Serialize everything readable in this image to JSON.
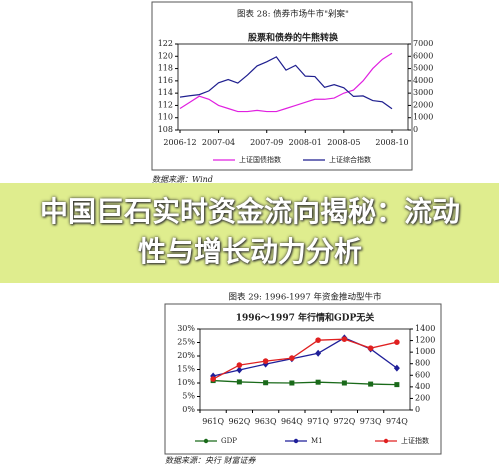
{
  "banner": {
    "title": "中国巨石实时资金流向揭秘：流动性与增长动力分析"
  },
  "chart_data": [
    {
      "type": "line",
      "caption": "图表 28: 债券市场牛市\"剁案\"",
      "title": "股票和债券的牛熊转换",
      "x": [
        "2006-12",
        "2007-01",
        "2007-02",
        "2007-03",
        "2007-04",
        "2007-05",
        "2007-06",
        "2007-07",
        "2007-08",
        "2007-09",
        "2007-10",
        "2007-11",
        "2007-12",
        "2008-01",
        "2008-02",
        "2008-03",
        "2008-04",
        "2008-05",
        "2008-06",
        "2008-07",
        "2008-08",
        "2008-09",
        "2008-10"
      ],
      "xticks": [
        "2006-12",
        "2007-04",
        "2007-09",
        "2008-01",
        "2008-05",
        "2008-10"
      ],
      "series": [
        {
          "name": "上证国债指数",
          "color": "#e020e0",
          "values": [
            111.5,
            112.5,
            113.5,
            113,
            112,
            111.5,
            111,
            111,
            111.2,
            111,
            111,
            111.5,
            112,
            112.5,
            113,
            113,
            113.2,
            114,
            114.5,
            116,
            118,
            119.5,
            120.5
          ]
        },
        {
          "name": "上证综合指数",
          "color": "#1f1f8f",
          "axis": "y2",
          "values": [
            2675,
            2786,
            2881,
            3183,
            3841,
            4109,
            3820,
            4471,
            5218,
            5552,
            5954,
            4871,
            5261,
            4383,
            4348,
            3473,
            3693,
            3433,
            2736,
            2775,
            2397,
            2293,
            1728
          ]
        }
      ],
      "ylim": [
        108,
        122
      ],
      "yticks": [
        108,
        110,
        112,
        114,
        116,
        118,
        120,
        122
      ],
      "y2lim": [
        0,
        7000
      ],
      "y2ticks": [
        0,
        1000,
        2000,
        3000,
        4000,
        5000,
        6000,
        7000
      ],
      "source": "数据来源：Wind"
    },
    {
      "type": "line",
      "caption": "图表 29: 1996-1997 年资金推动型牛市",
      "title": "1996～1997 年行情和GDP无关",
      "categories": [
        "961Q",
        "962Q",
        "963Q",
        "964Q",
        "971Q",
        "972Q",
        "973Q",
        "974Q"
      ],
      "series": [
        {
          "name": "GDP",
          "color": "#1a6a1a",
          "marker": "square",
          "values": [
            10.9,
            10.4,
            10.1,
            10.0,
            10.3,
            10.0,
            9.6,
            9.4
          ]
        },
        {
          "name": "M1",
          "color": "#1f1f99",
          "marker": "diamond",
          "values": [
            12.6,
            14.8,
            17,
            19,
            21,
            26.7,
            22.6,
            15.5
          ]
        },
        {
          "name": "上证指数",
          "color": "#e02020",
          "marker": "circle",
          "axis": "y2",
          "values": [
            535,
            776,
            845,
            897,
            1207,
            1224,
            1069,
            1172
          ]
        }
      ],
      "ylim": [
        0,
        30
      ],
      "yticks": [
        {
          "value": 0,
          "label": "0%"
        },
        {
          "value": 5,
          "label": "5%"
        },
        {
          "value": 10,
          "label": "10%"
        },
        {
          "value": 15,
          "label": "15%"
        },
        {
          "value": 20,
          "label": "20%"
        },
        {
          "value": 25,
          "label": "25%"
        },
        {
          "value": 30,
          "label": "30%"
        }
      ],
      "y2lim": [
        0,
        1400
      ],
      "y2ticks": [
        0,
        200,
        400,
        600,
        800,
        1000,
        1200,
        1400
      ],
      "source": "数据来源：央行 财富证券"
    }
  ]
}
